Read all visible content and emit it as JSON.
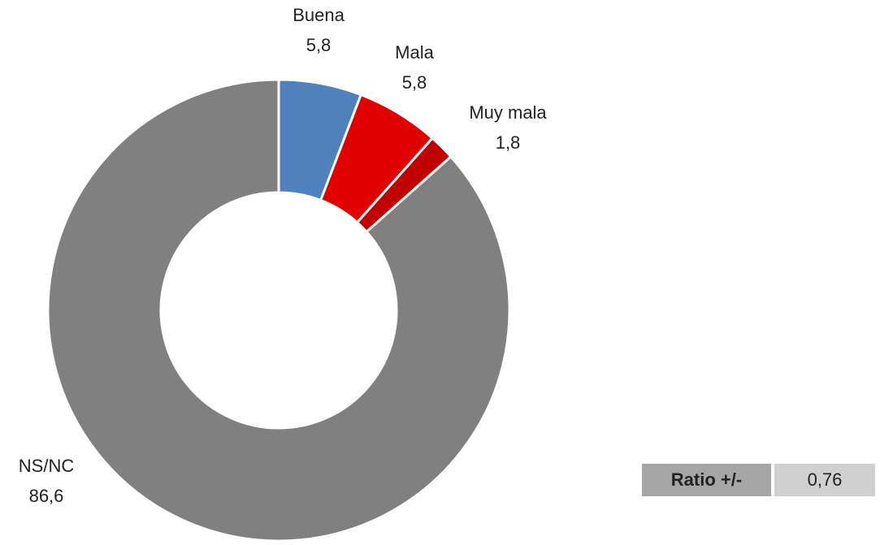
{
  "chart_data": {
    "type": "donut",
    "categories": [
      "Buena",
      "Mala",
      "Muy mala",
      "NS/NC"
    ],
    "values": [
      5.8,
      5.8,
      1.8,
      86.6
    ],
    "value_labels": [
      "5,8",
      "5,8",
      "1,8",
      "86,6"
    ],
    "colors": [
      "#4f81bd",
      "#e00000",
      "#c00000",
      "#808080"
    ]
  },
  "table": {
    "rows": [
      [
        "Ratio +/-",
        "0,76"
      ]
    ]
  }
}
